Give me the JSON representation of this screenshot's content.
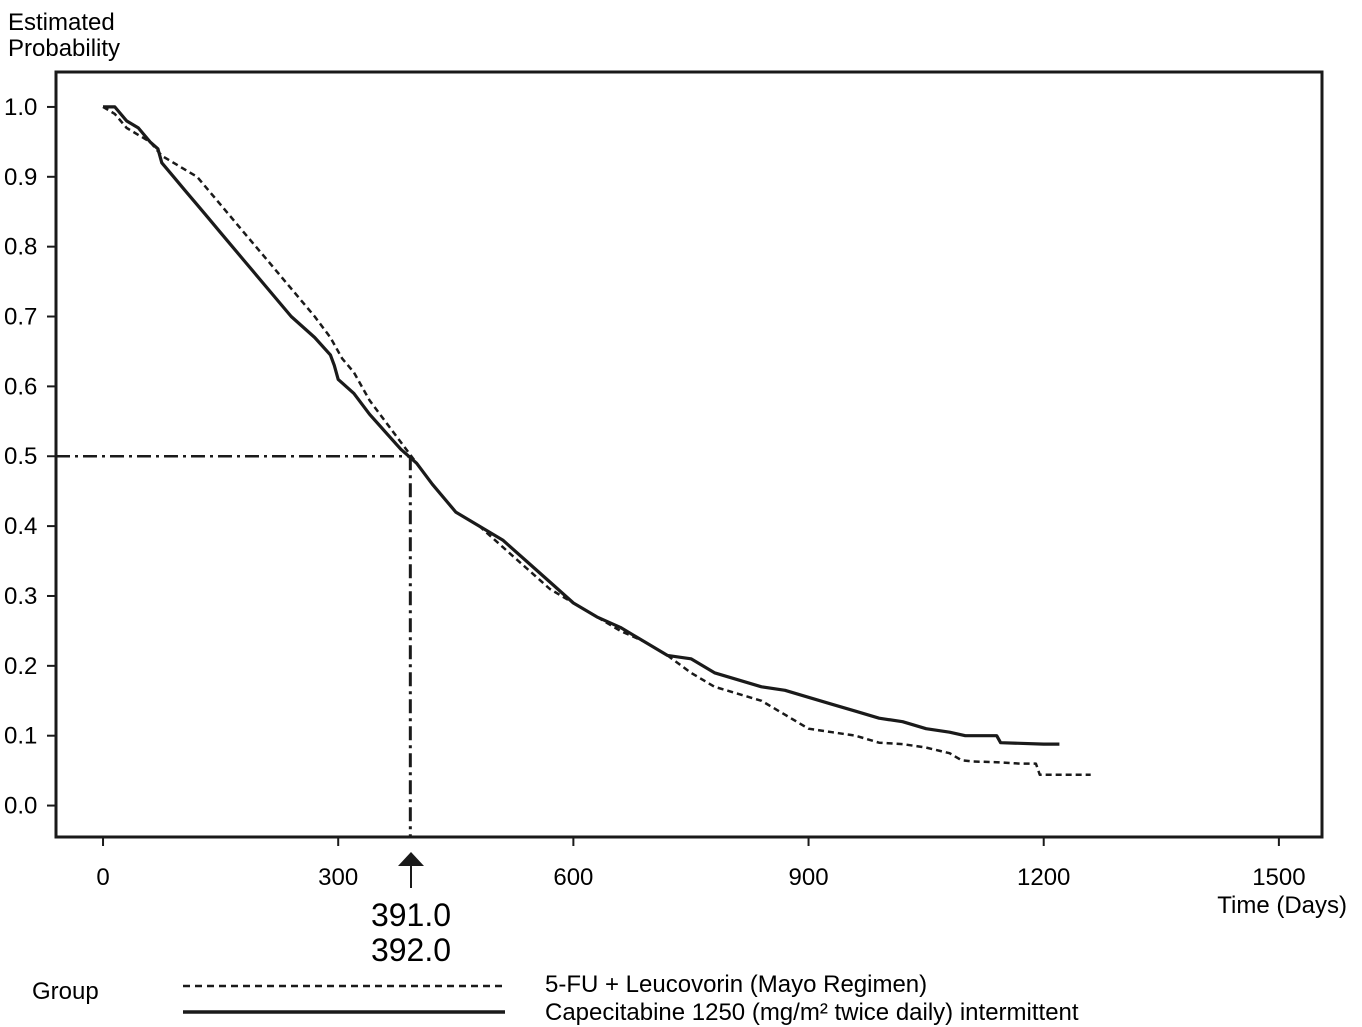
{
  "chart_data": {
    "type": "line",
    "title": "",
    "ylabel_line1": "Estimated",
    "ylabel_line2": "Probability",
    "xlabel": "Time (Days)",
    "xlim": [
      -60,
      1555
    ],
    "ylim": [
      -0.045,
      1.05
    ],
    "xticks": [
      0,
      300,
      600,
      900,
      1200,
      1500
    ],
    "xtick_labels": [
      "0",
      "300",
      "600",
      "900",
      "1200",
      "1500"
    ],
    "yticks": [
      0.0,
      0.1,
      0.2,
      0.3,
      0.4,
      0.5,
      0.6,
      0.7,
      0.8,
      0.9,
      1.0
    ],
    "ytick_labels": [
      "0.0",
      "0.1",
      "0.2",
      "0.3",
      "0.4",
      "0.5",
      "0.6",
      "0.7",
      "0.8",
      "0.9",
      "1.0"
    ],
    "median_reference": {
      "probability": 0.5,
      "days": 392
    },
    "median_labels": [
      "391.0",
      "392.0"
    ],
    "legend": {
      "title": "Group",
      "placement": "bottom"
    },
    "series": [
      {
        "name": "5-FU + Leucovorin (Mayo Regimen)",
        "style": "dashed",
        "x": [
          0,
          15,
          30,
          45,
          60,
          75,
          90,
          105,
          120,
          135,
          150,
          180,
          210,
          240,
          270,
          290,
          305,
          320,
          340,
          360,
          380,
          400,
          420,
          450,
          480,
          510,
          540,
          570,
          600,
          630,
          660,
          690,
          720,
          750,
          780,
          810,
          840,
          870,
          900,
          930,
          960,
          990,
          1020,
          1050,
          1080,
          1095,
          1110,
          1140,
          1170,
          1190,
          1195,
          1220,
          1260
        ],
        "y": [
          1.0,
          0.99,
          0.97,
          0.96,
          0.95,
          0.93,
          0.92,
          0.91,
          0.9,
          0.88,
          0.86,
          0.82,
          0.78,
          0.74,
          0.7,
          0.67,
          0.64,
          0.62,
          0.58,
          0.55,
          0.52,
          0.49,
          0.46,
          0.42,
          0.4,
          0.37,
          0.34,
          0.31,
          0.29,
          0.27,
          0.25,
          0.235,
          0.215,
          0.19,
          0.17,
          0.16,
          0.15,
          0.13,
          0.11,
          0.105,
          0.1,
          0.09,
          0.088,
          0.083,
          0.075,
          0.065,
          0.063,
          0.062,
          0.06,
          0.06,
          0.044,
          0.044,
          0.044
        ]
      },
      {
        "name": "Capecitabine 1250 (mg/m² twice daily) intermittent",
        "style": "solid",
        "x": [
          0,
          15,
          30,
          45,
          60,
          70,
          75,
          90,
          105,
          120,
          135,
          150,
          180,
          210,
          240,
          270,
          290,
          295,
          300,
          320,
          340,
          360,
          380,
          400,
          420,
          450,
          480,
          510,
          540,
          570,
          600,
          630,
          660,
          690,
          720,
          750,
          780,
          810,
          840,
          870,
          900,
          930,
          960,
          990,
          1020,
          1050,
          1080,
          1100,
          1140,
          1145,
          1200,
          1220
        ],
        "y": [
          1.0,
          1.0,
          0.98,
          0.97,
          0.95,
          0.94,
          0.92,
          0.9,
          0.88,
          0.86,
          0.84,
          0.82,
          0.78,
          0.74,
          0.7,
          0.67,
          0.645,
          0.63,
          0.61,
          0.59,
          0.56,
          0.535,
          0.51,
          0.49,
          0.46,
          0.42,
          0.4,
          0.38,
          0.35,
          0.32,
          0.29,
          0.27,
          0.255,
          0.235,
          0.215,
          0.21,
          0.19,
          0.18,
          0.17,
          0.165,
          0.155,
          0.145,
          0.135,
          0.125,
          0.12,
          0.11,
          0.105,
          0.1,
          0.1,
          0.09,
          0.088,
          0.088
        ]
      }
    ]
  }
}
